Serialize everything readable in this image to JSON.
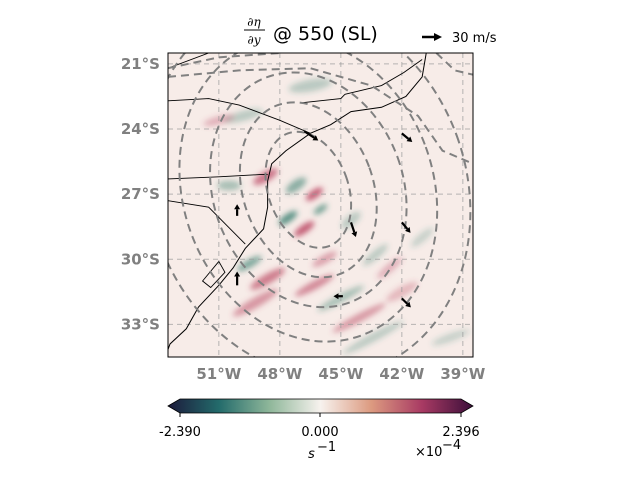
{
  "chart_data": {
    "type": "heatmap",
    "title": {
      "frac_num": "∂η",
      "frac_den": "∂y",
      "suffix": "@ 550 (SL)"
    },
    "vector_key": {
      "label": "30 m/s",
      "value": 30
    },
    "map_extent": {
      "lon": [
        -53.5,
        -38.5
      ],
      "lat": [
        -34.5,
        -20.5
      ]
    },
    "x_ticks": [
      {
        "lon": -51,
        "label": "51°W"
      },
      {
        "lon": -48,
        "label": "48°W"
      },
      {
        "lon": -45,
        "label": "45°W"
      },
      {
        "lon": -42,
        "label": "42°W"
      },
      {
        "lon": -39,
        "label": "39°W"
      }
    ],
    "y_ticks": [
      {
        "lat": -21,
        "label": "21°S"
      },
      {
        "lat": -24,
        "label": "24°S"
      },
      {
        "lat": -27,
        "label": "27°S"
      },
      {
        "lat": -30,
        "label": "30°S"
      },
      {
        "lat": -33,
        "label": "33°S"
      }
    ],
    "grid": true,
    "colorbar": {
      "min": -2.39,
      "max": 2.396,
      "ticks": [
        "-2.390",
        "0.000",
        "2.396"
      ],
      "unit_label": "s",
      "unit_exp": "−1",
      "scale_label": "×10",
      "scale_exp": "−4",
      "colormap": [
        "#1c1a3b",
        "#236b6b",
        "#8fb79a",
        "#f7f2ee",
        "#dc9a80",
        "#a83a63",
        "#3b0f3a"
      ]
    },
    "colors": {
      "positive": "#b8405e",
      "negative": "#2f7a6a",
      "contour": "#808080",
      "coast": "#000000"
    }
  }
}
